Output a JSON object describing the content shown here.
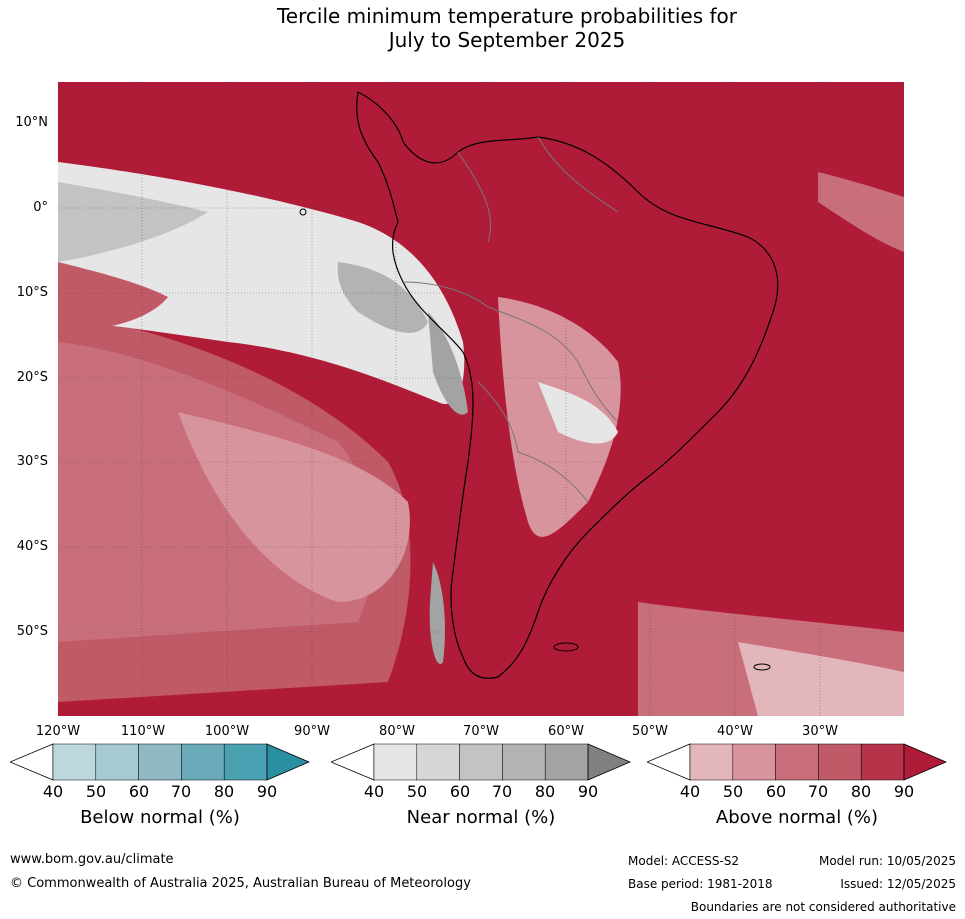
{
  "title": {
    "line1": "Tercile minimum temperature probabilities for",
    "line2": "July to September 2025"
  },
  "map": {
    "lat_labels": [
      "10°N",
      "0°",
      "10°S",
      "20°S",
      "30°S",
      "40°S",
      "50°S"
    ],
    "lon_labels": [
      "120°W",
      "110°W",
      "100°W",
      "90°W",
      "80°W",
      "70°W",
      "60°W",
      "50°W",
      "40°W",
      "30°W"
    ]
  },
  "colorbars": [
    {
      "label": "Below normal (%)",
      "ticks": [
        "40",
        "50",
        "60",
        "70",
        "80",
        "90"
      ],
      "colors": [
        "#ffffff",
        "#bcd7de",
        "#a7c9d2",
        "#8fb9c4",
        "#6aaab8",
        "#4aa1b1",
        "#2b8fa2"
      ]
    },
    {
      "label": "Near normal (%)",
      "ticks": [
        "40",
        "50",
        "60",
        "70",
        "80",
        "90"
      ],
      "colors": [
        "#ffffff",
        "#e6e6e6",
        "#d6d6d6",
        "#c3c3c3",
        "#b3b3b3",
        "#a3a3a3",
        "#808080"
      ]
    },
    {
      "label": "Above normal (%)",
      "ticks": [
        "40",
        "50",
        "60",
        "70",
        "80",
        "90"
      ],
      "colors": [
        "#ffffff",
        "#e2b6bb",
        "#d8949c",
        "#c96f7b",
        "#c05a67",
        "#b7334a",
        "#b01c38"
      ]
    }
  ],
  "footer": {
    "website": "www.bom.gov.au/climate",
    "copyright": "© Commonwealth of Australia 2025, Australian Bureau of Meteorology",
    "model": "Model: ACCESS-S2",
    "base_period": "Base period: 1981-2018",
    "model_run": "Model run: 10/05/2025",
    "issued": "Issued: 12/05/2025",
    "disclaimer": "Boundaries are not considered authoritative"
  }
}
